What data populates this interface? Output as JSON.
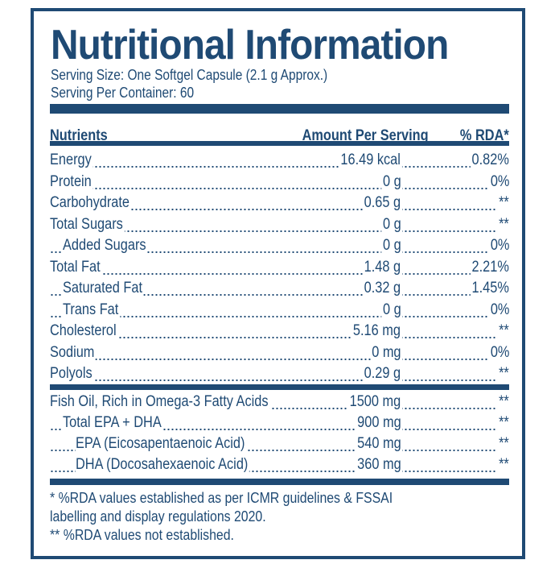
{
  "label": {
    "title": "Nutritional Information",
    "serving_size": "Serving Size: One Softgel Capsule (2.1 g Approx.)",
    "servings_per_container": "Serving Per Container: 60",
    "accent_color": "#1f4a74"
  },
  "table": {
    "headers": {
      "nutrients": "Nutrients",
      "amount": "Amount Per Serving",
      "rda": "% RDA*"
    },
    "rows": [
      {
        "name": "Energy",
        "amount": "16.49 kcal",
        "rda": "0.82%",
        "indent": 0
      },
      {
        "name": "Protein",
        "amount": "0 g",
        "rda": "0%",
        "indent": 0
      },
      {
        "name": "Carbohydrate",
        "amount": "0.65 g",
        "rda": "**",
        "indent": 0
      },
      {
        "name": "Total Sugars",
        "amount": "0 g",
        "rda": "**",
        "indent": 0
      },
      {
        "name": "Added Sugars",
        "amount": "0 g",
        "rda": "0%",
        "indent": 1
      },
      {
        "name": "Total Fat",
        "amount": "1.48 g",
        "rda": "2.21%",
        "indent": 0
      },
      {
        "name": "Saturated Fat",
        "amount": "0.32 g",
        "rda": "1.45%",
        "indent": 1
      },
      {
        "name": "Trans Fat",
        "amount": "0 g",
        "rda": "0%",
        "indent": 1
      },
      {
        "name": "Cholesterol",
        "amount": "5.16 mg",
        "rda": "**",
        "indent": 0
      },
      {
        "name": "Sodium",
        "amount": "0 mg",
        "rda": "0%",
        "indent": 0
      },
      {
        "name": "Polyols",
        "amount": "0.29 g",
        "rda": "**",
        "indent": 0
      }
    ],
    "supplement_rows": [
      {
        "name": "Fish Oil, Rich in Omega-3 Fatty Acids",
        "amount": "1500 mg",
        "rda": "**",
        "indent": 0
      },
      {
        "name": "Total EPA + DHA",
        "amount": "900 mg",
        "rda": "**",
        "indent": 1
      },
      {
        "name": "EPA (Eicosapentaenoic Acid)",
        "amount": "540 mg",
        "rda": "**",
        "indent": 2
      },
      {
        "name": "DHA (Docosahexaenoic Acid)",
        "amount": "360 mg",
        "rda": "**",
        "indent": 2
      }
    ]
  },
  "footnotes": {
    "line1": "* %RDA values established as per ICMR guidelines & FSSAI",
    "line2": "labelling and display regulations 2020.",
    "line3": "** %RDA values not established."
  }
}
